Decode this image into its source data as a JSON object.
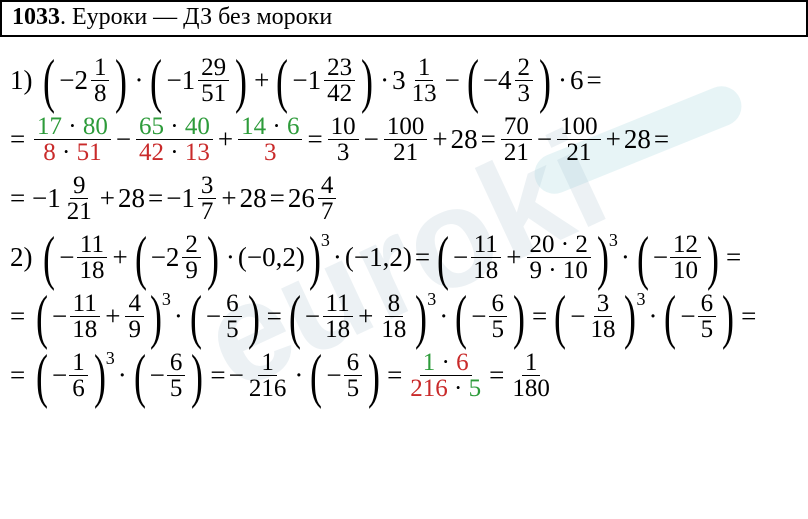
{
  "title": {
    "num": "1033",
    "text": ". Еуроки  —  ДЗ без мороки"
  },
  "watermark": "euroki",
  "colors": {
    "green": "#2d9b3a",
    "red": "#c92a2a",
    "black": "#000000",
    "bg": "#ffffff"
  },
  "font": {
    "family": "Times New Roman",
    "size_pt": 27,
    "title_size_pt": 24
  },
  "problems": [
    {
      "n": "1",
      "line1_terms": [
        {
          "type": "paren",
          "content": {
            "whole": "−2",
            "num": "1",
            "den": "8"
          }
        },
        {
          "op": "·"
        },
        {
          "type": "paren",
          "content": {
            "whole": "−1",
            "num": "29",
            "den": "51"
          }
        },
        {
          "op": "+"
        },
        {
          "type": "paren",
          "content": {
            "whole": "−1",
            "num": "23",
            "den": "42"
          }
        },
        {
          "op": "·"
        },
        {
          "type": "mix",
          "whole": "3",
          "num": "1",
          "den": "13"
        },
        {
          "op": "−"
        },
        {
          "type": "paren",
          "content": {
            "whole": "−4",
            "num": "2",
            "den": "3"
          }
        },
        {
          "op": "·"
        },
        {
          "plain": "6"
        },
        {
          "op": "="
        }
      ],
      "line2": {
        "t1": {
          "num_a": "17",
          "num_b": "80",
          "den_a": "8",
          "den_b": "51"
        },
        "t2": {
          "num_a": "65",
          "num_b": "40",
          "den_a": "42",
          "den_b": "13"
        },
        "t3": {
          "num_a": "14",
          "num_b": "6",
          "den": "3"
        },
        "r1": {
          "num": "10",
          "den": "3"
        },
        "r2": {
          "num": "100",
          "den": "21"
        },
        "r3": "28",
        "r4": {
          "num": "70",
          "den": "21"
        },
        "r5": {
          "num": "100",
          "den": "21"
        }
      },
      "line3": {
        "a": {
          "whole": "−1",
          "num": "9",
          "den": "21"
        },
        "plus": "28",
        "b": {
          "whole": "−1",
          "num": "3",
          "den": "7"
        },
        "ans": {
          "whole": "26",
          "num": "4",
          "den": "7"
        }
      }
    },
    {
      "n": "2",
      "line1": {
        "f1": {
          "num": "11",
          "den": "18"
        },
        "m": {
          "whole": "−2",
          "num": "2",
          "den": "9"
        },
        "d": "(−0,2)",
        "pow": "3",
        "mul": "(−1,2)",
        "f2": {
          "num": "11",
          "den": "18"
        },
        "f3": {
          "num_a": "20",
          "num_b": "2",
          "den_a": "9",
          "den_b": "10"
        },
        "f4": {
          "num": "12",
          "den": "10"
        }
      },
      "line2": {
        "a": {
          "num": "11",
          "den": "18"
        },
        "b": {
          "num": "4",
          "den": "9"
        },
        "c": {
          "num": "6",
          "den": "5"
        },
        "d": {
          "num": "11",
          "den": "18"
        },
        "e": {
          "num": "8",
          "den": "18"
        },
        "f": {
          "num": "6",
          "den": "5"
        },
        "g": {
          "num": "3",
          "den": "18"
        },
        "h": {
          "num": "6",
          "den": "5"
        }
      },
      "line3": {
        "a": {
          "num": "1",
          "den": "6"
        },
        "b": {
          "num": "6",
          "den": "5"
        },
        "c": {
          "num": "1",
          "den": "216"
        },
        "d": {
          "num": "6",
          "den": "5"
        },
        "e": {
          "num_a": "1",
          "num_b": "6",
          "den_a": "216",
          "den_b": "5"
        },
        "ans": {
          "num": "1",
          "den": "180"
        }
      }
    }
  ]
}
